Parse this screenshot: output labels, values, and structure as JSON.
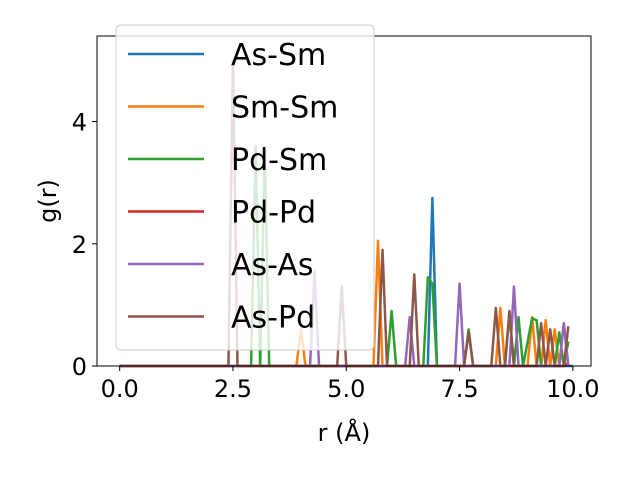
{
  "chart_data": {
    "type": "line",
    "title": "",
    "xlabel": "r (Å)",
    "ylabel": "g(r)",
    "xlim": [
      -0.5,
      10.4
    ],
    "ylim": [
      0,
      5.4
    ],
    "xticks": [
      0.0,
      2.5,
      5.0,
      7.5,
      10.0
    ],
    "xtick_labels": [
      "0.0",
      "2.5",
      "5.0",
      "7.5",
      "10.0"
    ],
    "yticks": [
      0,
      2,
      4
    ],
    "ytick_labels": [
      "0",
      "2",
      "4"
    ],
    "grid": false,
    "legend_position": "upper-left",
    "series": [
      {
        "name": "As-Sm",
        "color": "#1f77b4",
        "points": [
          [
            0,
            0
          ],
          [
            6.8,
            0
          ],
          [
            6.9,
            2.75
          ],
          [
            7.0,
            0
          ],
          [
            10.0,
            0
          ]
        ]
      },
      {
        "name": "Sm-Sm",
        "color": "#ff7f0e",
        "points": [
          [
            0,
            0
          ],
          [
            3.9,
            0
          ],
          [
            4.0,
            0.6
          ],
          [
            4.1,
            0
          ],
          [
            5.6,
            0
          ],
          [
            5.7,
            2.05
          ],
          [
            5.8,
            0
          ],
          [
            8.3,
            0
          ],
          [
            8.4,
            0.95
          ],
          [
            8.5,
            0
          ],
          [
            9.0,
            0
          ],
          [
            9.1,
            0.8
          ],
          [
            9.2,
            0
          ],
          [
            9.3,
            0
          ],
          [
            9.4,
            0.75
          ],
          [
            9.5,
            0
          ],
          [
            9.6,
            0.6
          ],
          [
            9.7,
            0
          ],
          [
            9.8,
            0.7
          ],
          [
            9.9,
            0
          ]
        ]
      },
      {
        "name": "Pd-Sm",
        "color": "#2ca02c",
        "points": [
          [
            0,
            0
          ],
          [
            2.9,
            0
          ],
          [
            3.0,
            3.6
          ],
          [
            3.1,
            0
          ],
          [
            3.2,
            3.5
          ],
          [
            3.3,
            0
          ],
          [
            5.9,
            0
          ],
          [
            6.0,
            0.9
          ],
          [
            6.1,
            0
          ],
          [
            6.7,
            0
          ],
          [
            6.8,
            1.45
          ],
          [
            6.9,
            1.35
          ],
          [
            7.0,
            0
          ],
          [
            7.6,
            0
          ],
          [
            7.7,
            0.6
          ],
          [
            7.8,
            0
          ],
          [
            8.5,
            0
          ],
          [
            8.6,
            0.85
          ],
          [
            8.7,
            0
          ],
          [
            8.8,
            0.8
          ],
          [
            8.9,
            0
          ],
          [
            9.1,
            0.78
          ],
          [
            9.2,
            0.75
          ],
          [
            9.3,
            0
          ],
          [
            9.6,
            0
          ],
          [
            9.7,
            0.55
          ],
          [
            9.8,
            0
          ],
          [
            9.9,
            0.4
          ]
        ]
      },
      {
        "name": "Pd-Pd",
        "color": "#d62728",
        "points": [
          [
            0,
            0
          ],
          [
            9.8,
            0
          ],
          [
            9.9,
            0.05
          ]
        ]
      },
      {
        "name": "As-As",
        "color": "#9467bd",
        "points": [
          [
            0,
            0
          ],
          [
            4.2,
            0
          ],
          [
            4.3,
            1.55
          ],
          [
            4.4,
            0
          ],
          [
            6.3,
            0
          ],
          [
            6.4,
            0.8
          ],
          [
            6.5,
            0
          ],
          [
            7.4,
            0
          ],
          [
            7.5,
            1.35
          ],
          [
            7.6,
            0
          ],
          [
            8.6,
            0
          ],
          [
            8.7,
            1.3
          ],
          [
            8.8,
            0
          ],
          [
            9.7,
            0
          ],
          [
            9.8,
            0.7
          ],
          [
            9.9,
            0
          ]
        ]
      },
      {
        "name": "As-Pd",
        "color": "#8c564b",
        "points": [
          [
            0,
            0
          ],
          [
            2.4,
            0
          ],
          [
            2.5,
            5.0
          ],
          [
            2.6,
            0
          ],
          [
            4.8,
            0
          ],
          [
            4.9,
            1.3
          ],
          [
            5.0,
            0
          ],
          [
            5.7,
            0
          ],
          [
            5.8,
            1.9
          ],
          [
            5.9,
            0
          ],
          [
            6.4,
            0
          ],
          [
            6.5,
            1.5
          ],
          [
            6.6,
            0
          ],
          [
            7.6,
            0
          ],
          [
            7.7,
            0.55
          ],
          [
            7.8,
            0
          ],
          [
            8.2,
            0
          ],
          [
            8.3,
            0.95
          ],
          [
            8.4,
            0
          ],
          [
            8.5,
            0
          ],
          [
            8.6,
            0.9
          ],
          [
            8.7,
            0
          ],
          [
            9.2,
            0
          ],
          [
            9.3,
            0.7
          ],
          [
            9.4,
            0
          ],
          [
            9.5,
            0.6
          ],
          [
            9.6,
            0
          ],
          [
            9.8,
            0
          ],
          [
            9.9,
            0.65
          ]
        ]
      }
    ]
  }
}
